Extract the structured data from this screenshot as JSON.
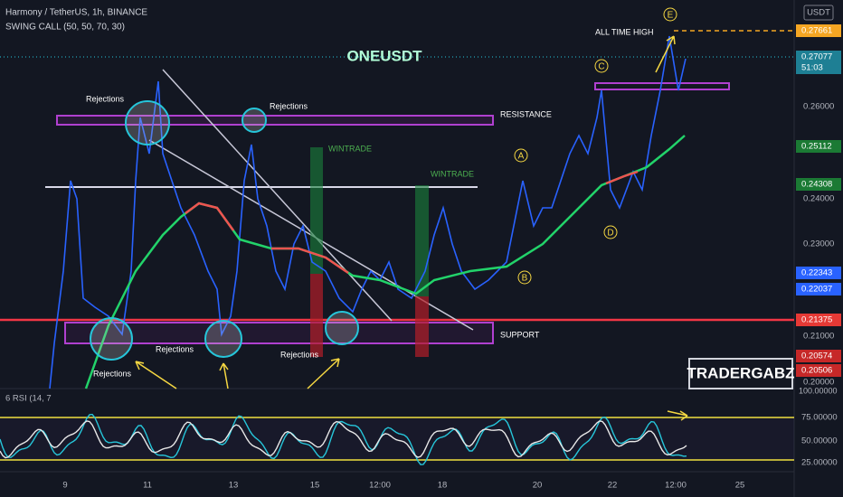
{
  "header": {
    "symbol": "Harmony / TetherUS, 1h, BINANCE",
    "indicator": "SWING CALL (50, 50, 70, 30)",
    "currency": "USDT"
  },
  "title": "ONEUSDT",
  "annotations": {
    "rejections": [
      "Rejections",
      "Rejections",
      "Rejections",
      "Rejections",
      "Rejections"
    ],
    "resistance": "RESISTANCE",
    "support": "SUPPORT",
    "wintrade": [
      "WINTRADE",
      "WINTRADE"
    ],
    "all_time_high": "ALL TIME HIGH",
    "waves": [
      "A",
      "B",
      "C",
      "D",
      "E"
    ],
    "watermark": "TRADERGABZ"
  },
  "price_axis": {
    "ticks": [
      "0.26000",
      "0.24000",
      "0.23000",
      "0.21000",
      "0.20000"
    ],
    "tags": [
      "0.27661",
      "0.27077",
      "51:03",
      "0.25112",
      "0.24308",
      "0.22343",
      "0.22037",
      "0.21375",
      "0.20574",
      "0.20506"
    ]
  },
  "rsi": {
    "label": "6 RSI (14, 7",
    "ticks": [
      "100.00000",
      "75.00000",
      "50.00000",
      "25.00000"
    ]
  },
  "time_axis": [
    "9",
    "11",
    "13",
    "15",
    "12:00",
    "18",
    "20",
    "22",
    "12:00",
    "25"
  ]
}
